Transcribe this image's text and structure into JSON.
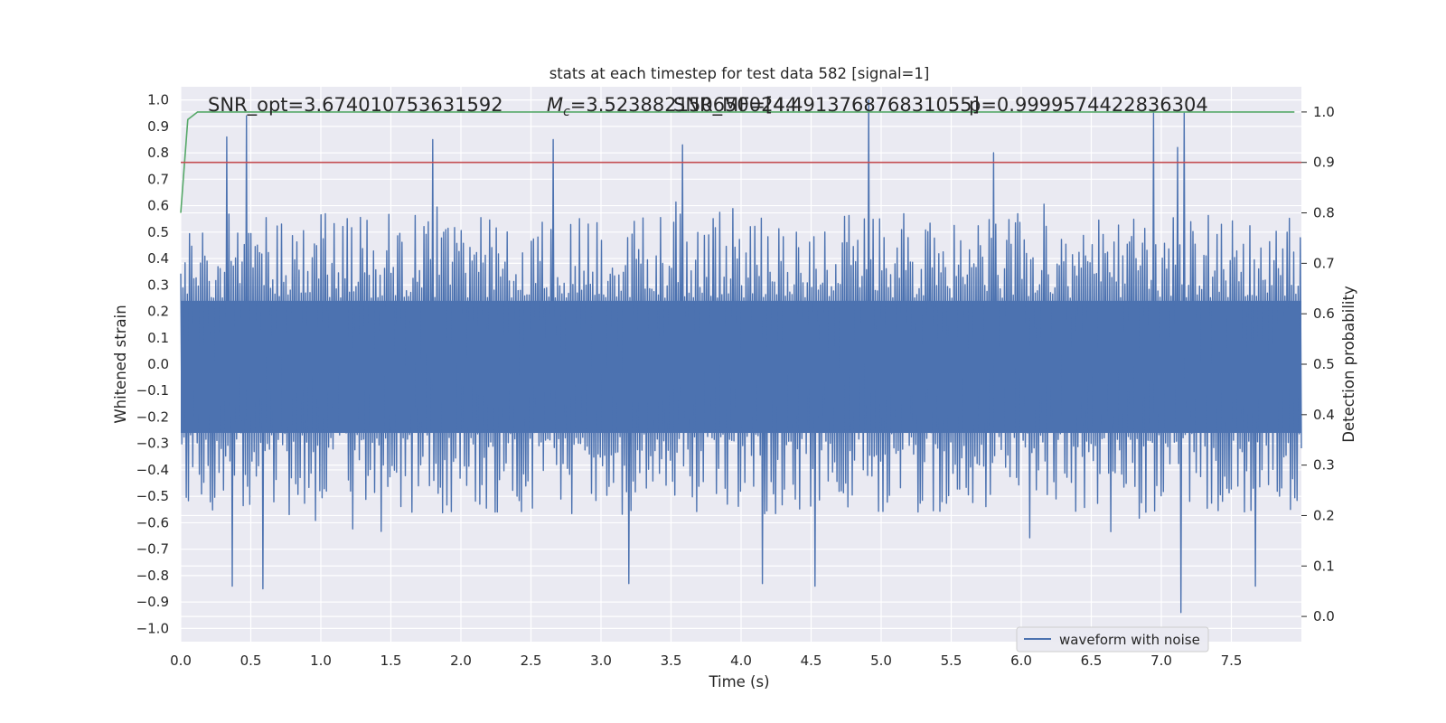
{
  "chart_data": {
    "type": "line",
    "title": "stats at each timestep for test data 582 [signal=1]",
    "xlabel": "Time (s)",
    "ylabel": "Whitened strain",
    "ylabel_right": "Detection probability",
    "xlim": [
      0.0,
      8.0
    ],
    "ylim": [
      -1.05,
      1.05
    ],
    "ylim_right": [
      -0.05,
      1.05
    ],
    "xticks": [
      "0.0",
      "0.5",
      "1.0",
      "1.5",
      "2.0",
      "2.5",
      "3.0",
      "3.5",
      "4.0",
      "4.5",
      "5.0",
      "5.5",
      "6.0",
      "6.5",
      "7.0",
      "7.5"
    ],
    "yticks": [
      "1.0",
      "0.9",
      "0.8",
      "0.7",
      "0.6",
      "0.5",
      "0.4",
      "0.3",
      "0.2",
      "0.1",
      "0.0",
      "−0.1",
      "−0.2",
      "−0.3",
      "−0.4",
      "−0.5",
      "−0.6",
      "−0.7",
      "−0.8",
      "−0.9",
      "−1.0"
    ],
    "yticks_right": [
      "1.0",
      "0.9",
      "0.8",
      "0.7",
      "0.6",
      "0.5",
      "0.4",
      "0.3",
      "0.2",
      "0.1",
      "0.0"
    ],
    "grid": true,
    "legend_position": "lower-right",
    "annotations": {
      "snr_opt": "SNR_opt=3.674010753631592",
      "mc_prefix": "M",
      "mc_sub": "c",
      "mc_value": "=3.5238821506500244",
      "snr_mf": "SNR_MF=[4.491376876831055]",
      "p": "p=0.9999574422836304"
    },
    "series": [
      {
        "name": "waveform with noise",
        "color": "#4c72b0",
        "duration_s": 8.0,
        "n_samples": 1024,
        "spikes": [
          {
            "t": 0.33,
            "v": 0.86
          },
          {
            "t": 0.47,
            "v": 0.94
          },
          {
            "t": 1.81,
            "v": 0.85
          },
          {
            "t": 2.67,
            "v": 0.85
          },
          {
            "t": 3.58,
            "v": 0.83
          },
          {
            "t": 4.92,
            "v": 1.0
          },
          {
            "t": 5.8,
            "v": 0.8
          },
          {
            "t": 6.95,
            "v": 0.95
          },
          {
            "t": 7.12,
            "v": 0.82
          },
          {
            "t": 7.17,
            "v": 0.95
          },
          {
            "t": 0.37,
            "v": -0.84
          },
          {
            "t": 0.59,
            "v": -0.85
          },
          {
            "t": 3.2,
            "v": -0.83
          },
          {
            "t": 4.15,
            "v": -0.83
          },
          {
            "t": 4.52,
            "v": -0.84
          },
          {
            "t": 7.13,
            "v": -0.94
          },
          {
            "t": 7.67,
            "v": -0.84
          }
        ]
      },
      {
        "name": "",
        "color": "#55a868",
        "axis": "right",
        "points": [
          [
            0.0,
            0.8
          ],
          [
            0.05,
            0.985
          ],
          [
            0.12,
            1.0
          ],
          [
            7.95,
            1.0
          ]
        ]
      },
      {
        "name": "",
        "color": "#c44e52",
        "axis": "right",
        "points": [
          [
            0.0,
            0.9
          ],
          [
            8.0,
            0.9
          ]
        ]
      }
    ]
  }
}
